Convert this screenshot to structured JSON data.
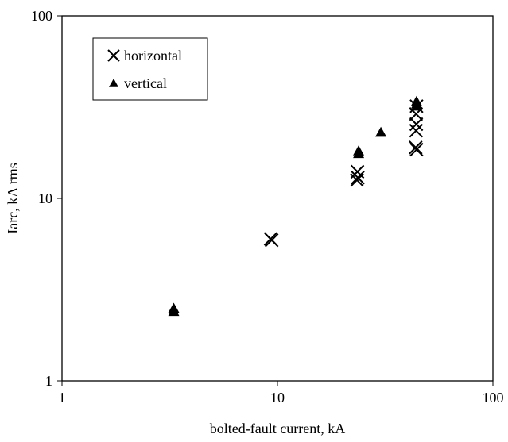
{
  "chart_data": {
    "type": "scatter",
    "xlabel": "bolted-fault current, kA",
    "ylabel": "Iarc, kA rms",
    "xscale": "log",
    "yscale": "log",
    "xlim": [
      1,
      100
    ],
    "ylim": [
      1,
      100
    ],
    "x_ticks": [
      "1",
      "10",
      "100"
    ],
    "y_ticks": [
      "1",
      "10",
      "100"
    ],
    "grid": false,
    "legend_position": "top-left",
    "series": [
      {
        "name": "horizontal",
        "marker": "x",
        "color": "#000000",
        "points": [
          [
            9.3,
            6.0
          ],
          [
            9.4,
            5.9
          ],
          [
            23.5,
            14.0
          ],
          [
            23.6,
            13.0
          ],
          [
            23.4,
            12.6
          ],
          [
            44.2,
            32.0
          ],
          [
            44.0,
            29.0
          ],
          [
            44.1,
            25.5
          ],
          [
            44.0,
            23.5
          ],
          [
            43.8,
            19.0
          ],
          [
            44.2,
            18.5
          ]
        ]
      },
      {
        "name": "vertical",
        "marker": "triangle",
        "color": "#000000",
        "points": [
          [
            3.3,
            2.5
          ],
          [
            3.3,
            2.4
          ],
          [
            23.8,
            18.2
          ],
          [
            23.8,
            17.6
          ],
          [
            30.2,
            23.0
          ],
          [
            44.2,
            34.0
          ],
          [
            44.3,
            33.0
          ],
          [
            44.1,
            32.0
          ]
        ]
      }
    ]
  }
}
